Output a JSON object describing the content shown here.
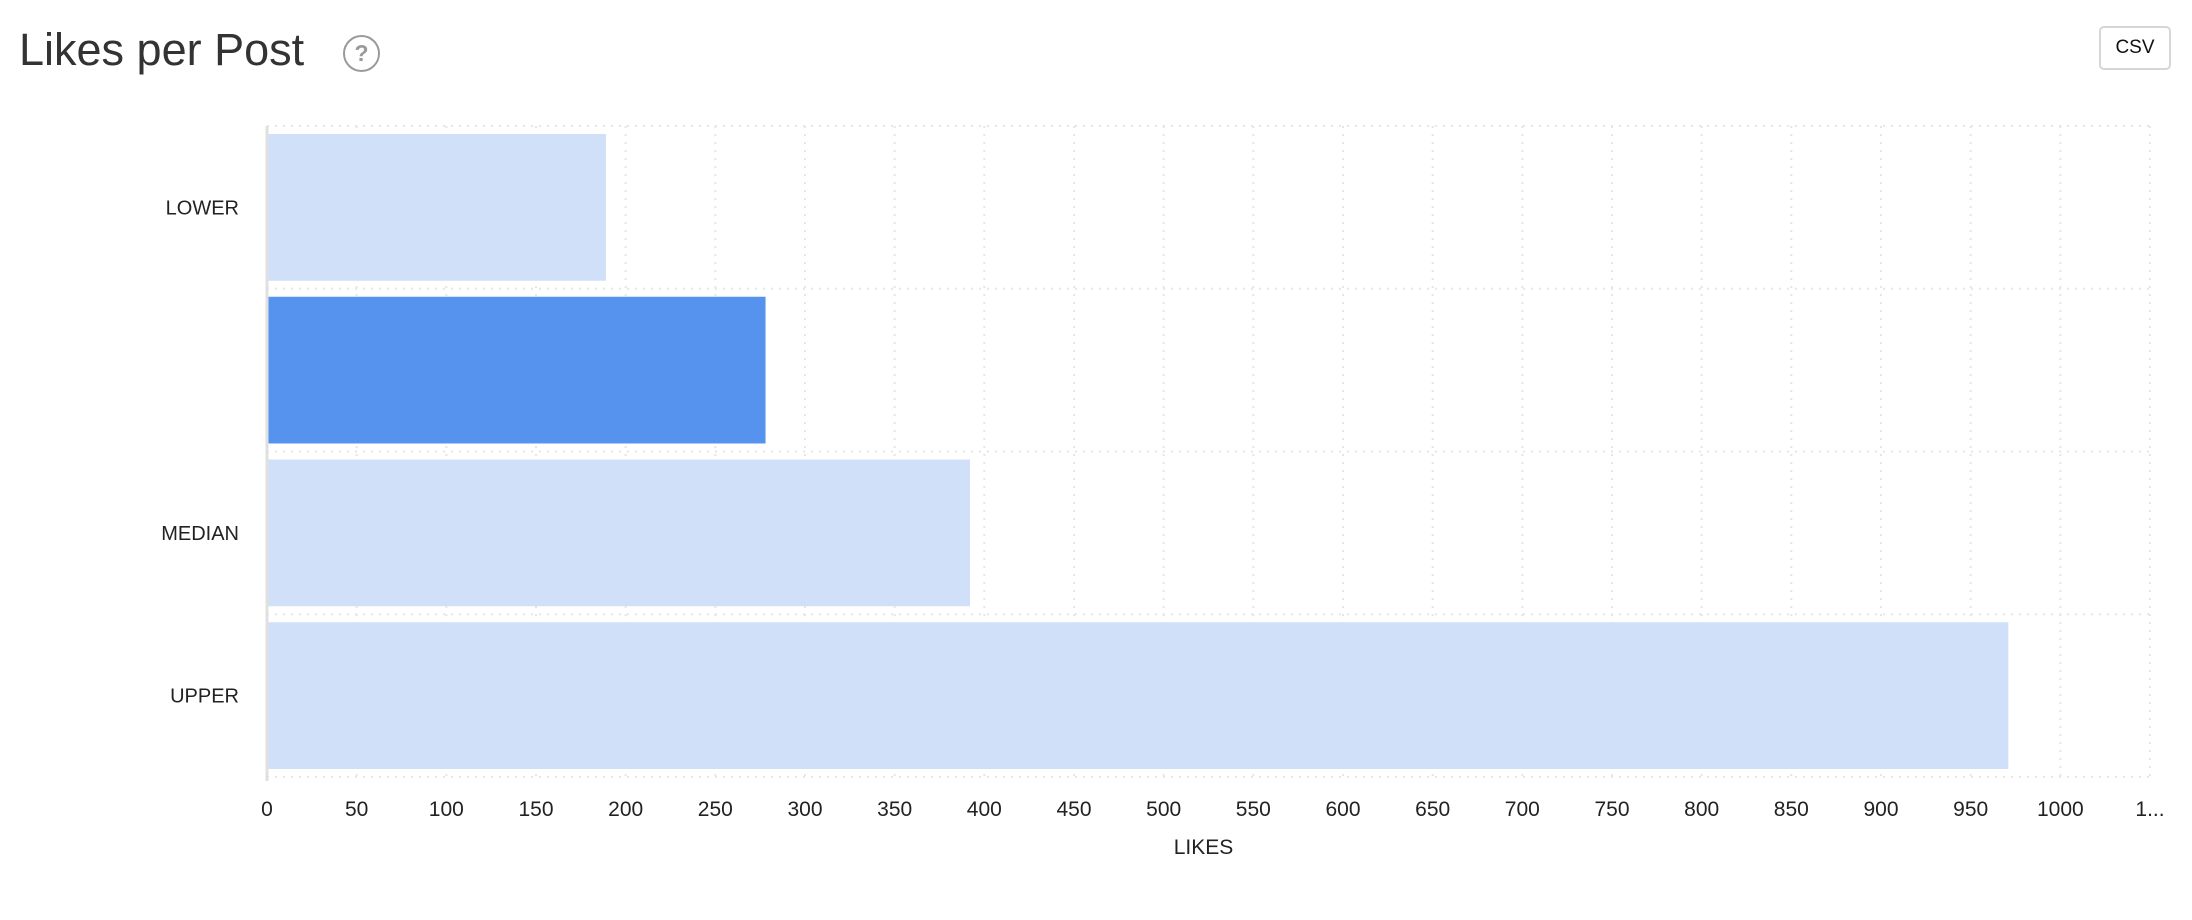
{
  "header": {
    "title": "Likes per Post",
    "help_icon": "question-circle-icon",
    "csv_label": "CSV"
  },
  "chart_data": {
    "type": "bar",
    "orientation": "horizontal",
    "title": "Likes per Post",
    "categories": [
      "LOWER",
      "",
      "MEDIAN",
      "UPPER"
    ],
    "values": [
      189,
      278,
      392,
      971
    ],
    "highlighted_index": 1,
    "colors": {
      "default": "#cfe0f8",
      "highlight": "#5593ef"
    },
    "xlabel": "LIKES",
    "ylabel": "",
    "xlim": [
      0,
      1050
    ],
    "xticks": [
      "0",
      "50",
      "100",
      "150",
      "200",
      "250",
      "300",
      "350",
      "400",
      "450",
      "500",
      "550",
      "600",
      "650",
      "700",
      "750",
      "800",
      "850",
      "900",
      "950",
      "1000",
      "1..."
    ],
    "grid": true
  }
}
